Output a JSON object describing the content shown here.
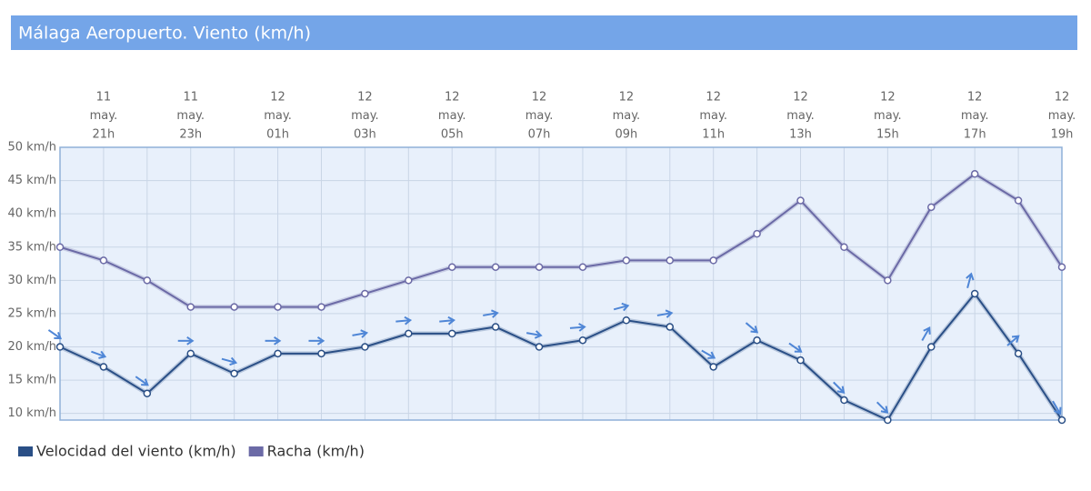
{
  "chart_data": {
    "type": "line",
    "title": "Málaga Aeropuerto. Viento (km/h)",
    "categories": [
      null,
      [
        "11",
        "may.",
        "21h"
      ],
      null,
      [
        "11",
        "may.",
        "23h"
      ],
      null,
      [
        "12",
        "may.",
        "01h"
      ],
      null,
      [
        "12",
        "may.",
        "03h"
      ],
      null,
      [
        "12",
        "may.",
        "05h"
      ],
      null,
      [
        "12",
        "may.",
        "07h"
      ],
      null,
      [
        "12",
        "may.",
        "09h"
      ],
      null,
      [
        "12",
        "may.",
        "11h"
      ],
      null,
      [
        "12",
        "may.",
        "13h"
      ],
      null,
      [
        "12",
        "may.",
        "15h"
      ],
      null,
      [
        "12",
        "may.",
        "17h"
      ],
      null,
      [
        "12",
        "may.",
        "19h"
      ]
    ],
    "series": [
      {
        "name": "Velocidad del viento (km/h)",
        "color": "#2a4f86",
        "values": [
          20,
          17,
          13,
          19,
          16,
          19,
          19,
          20,
          22,
          22,
          23,
          20,
          21,
          24,
          23,
          17,
          21,
          18,
          12,
          9,
          20,
          28,
          19,
          9
        ],
        "arrow_directions": [
          35,
          20,
          35,
          0,
          15,
          0,
          0,
          -10,
          -5,
          -5,
          -10,
          10,
          -5,
          -15,
          -10,
          30,
          40,
          35,
          45,
          45,
          -60,
          -75,
          -40,
          60
        ]
      },
      {
        "name": "Racha (km/h)",
        "color": "#6b6aa6",
        "values": [
          35,
          33,
          30,
          26,
          26,
          26,
          26,
          28,
          30,
          32,
          32,
          32,
          32,
          33,
          33,
          33,
          37,
          42,
          35,
          30,
          41,
          46,
          42,
          32
        ]
      }
    ],
    "arrow_color": "#4f86d6",
    "ylim": [
      9,
      50
    ],
    "yticks": [
      {
        "value": 10,
        "label": "10 km/h"
      },
      {
        "value": 15,
        "label": "15 km/h"
      },
      {
        "value": 20,
        "label": "20 km/h"
      },
      {
        "value": 25,
        "label": "25 km/h"
      },
      {
        "value": 30,
        "label": "30 km/h"
      },
      {
        "value": 35,
        "label": "35 km/h"
      },
      {
        "value": 40,
        "label": "40 km/h"
      },
      {
        "value": 45,
        "label": "45 km/h"
      },
      {
        "value": 50,
        "label": "50 km/h"
      }
    ],
    "grid": true
  }
}
